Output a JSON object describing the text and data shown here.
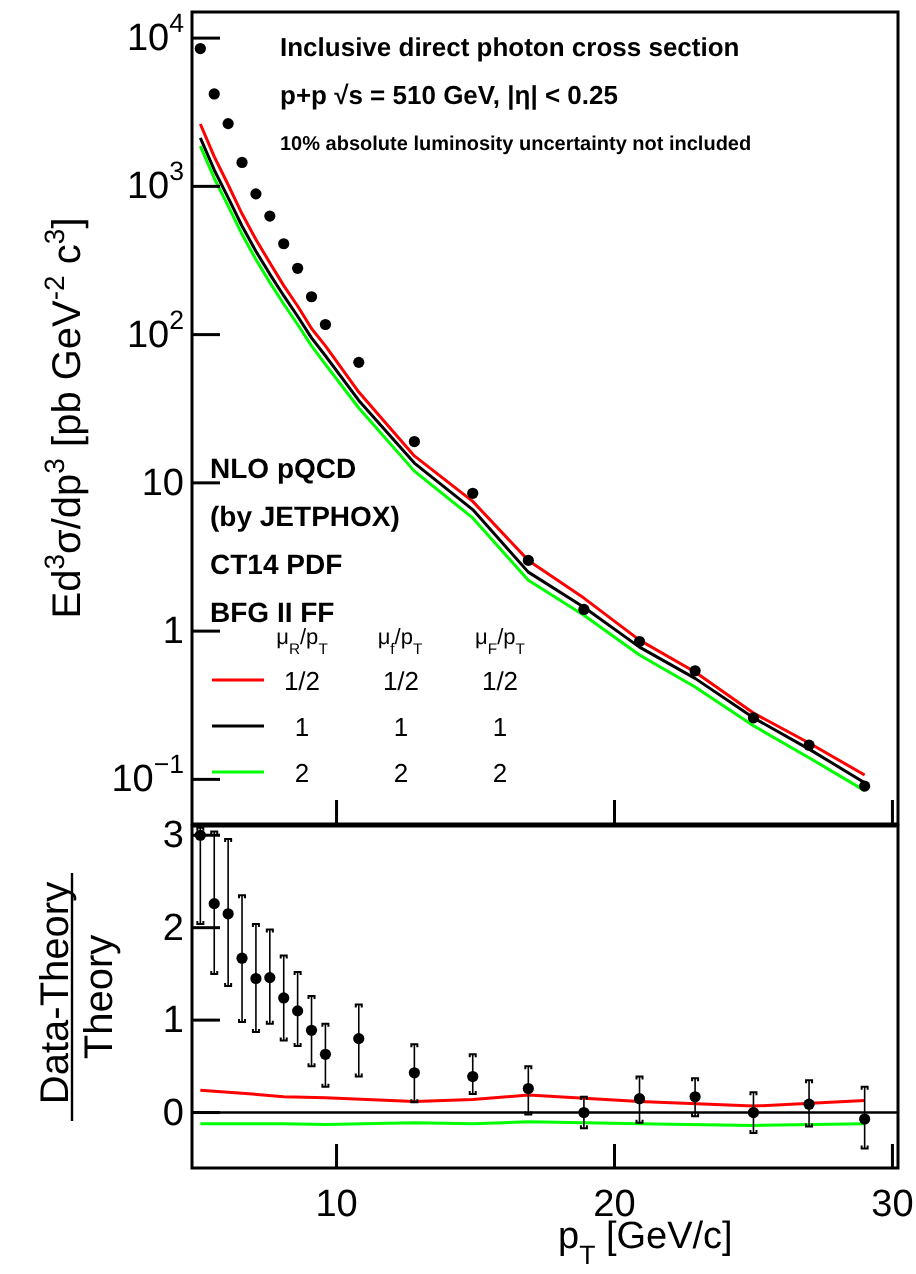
{
  "chart_data": [
    {
      "type": "scatter",
      "title": "Inclusive direct photon cross section",
      "subtitle": "p+p  √s = 510 GeV, |η| < 0.25",
      "annotations": [
        "10% absolute luminosity uncertainty not included",
        "NLO pQCD",
        "(by JETPHOX)",
        "CT14 PDF",
        "BFG II FF"
      ],
      "ylabel": "Ed$^{3}$σ/dp$^{3}$ [pb GeV$^{-2}$ c$^{3}$]",
      "log": "y",
      "tick_labels": "y",
      "legend": "bottom left",
      "legend_title": "μ$_{R}$/p$_{T}$ μ$_{f}$/p$_{T}$ μ$_{F}$/p$_{T}$",
      "xlim": [
        4.8,
        30.2
      ],
      "xticks": [
        {
          "value": 10,
          "label": null
        },
        {
          "value": 20,
          "label": null
        },
        {
          "value": 30,
          "label": null
        }
      ],
      "ylim": [
        0.05,
        15000
      ],
      "yticks": [
        {
          "value": 10000,
          "label": "10$^{4}$"
        },
        {
          "value": 1000,
          "label": "10$^{3}$"
        },
        {
          "value": 100,
          "label": "10$^{2}$"
        },
        10,
        1,
        {
          "value": 0.1,
          "label": "10$^{−1}$"
        }
      ],
      "series": [
        {
          "type": "line",
          "name": "1/2 1/2 1/2",
          "color": "#ff0000",
          "x": [
            5.1,
            5.6,
            6.1,
            6.6,
            7.1,
            7.6,
            8.1,
            8.6,
            9.1,
            9.6,
            10.8,
            12.8,
            14.9,
            16.9,
            18.9,
            20.9,
            22.9,
            25.0,
            27.0,
            29.0
          ],
          "values": [
            2635,
            1587,
            1025,
            653,
            438,
            305,
            214,
            156,
            110,
            84,
            41,
            15.2,
            7.5,
            3.0,
            1.67,
            0.87,
            0.53,
            0.28,
            0.176,
            0.107
          ]
        },
        {
          "type": "line",
          "name": "1 1 1",
          "color": "#000000",
          "x": [
            5.1,
            5.6,
            6.1,
            6.6,
            7.1,
            7.6,
            8.1,
            8.6,
            9.1,
            9.6,
            10.8,
            12.8,
            14.9,
            16.9,
            18.9,
            20.9,
            22.9,
            25.0,
            27.0,
            29.0
          ],
          "values": [
            2125,
            1290,
            840,
            540,
            365,
            256,
            183,
            133,
            95,
            72,
            36,
            13.6,
            6.6,
            2.5,
            1.45,
            0.78,
            0.48,
            0.26,
            0.16,
            0.095
          ]
        },
        {
          "type": "line",
          "name": "2 2 2",
          "color": "#00ff00",
          "x": [
            5.1,
            5.6,
            6.1,
            6.6,
            7.1,
            7.6,
            8.1,
            8.6,
            9.1,
            9.6,
            10.8,
            12.8,
            14.9,
            16.9,
            18.9,
            20.9,
            22.9,
            25.0,
            27.0,
            29.0
          ],
          "values": [
            1870,
            1135,
            739,
            475,
            321,
            225,
            161,
            117,
            84,
            63,
            32,
            12.0,
            5.8,
            2.2,
            1.28,
            0.69,
            0.42,
            0.23,
            0.14,
            0.084
          ]
        },
        {
          "type": "scatter",
          "marker": "circle",
          "color": "#000000",
          "x": [
            5.1,
            5.6,
            6.1,
            6.6,
            7.1,
            7.6,
            8.1,
            8.6,
            9.1,
            9.6,
            10.8,
            12.8,
            14.9,
            16.9,
            18.9,
            20.9,
            22.9,
            25.0,
            27.0,
            29.0
          ],
          "values": [
            8500,
            4200,
            2650,
            1450,
            890,
            630,
            410,
            280,
            180,
            117,
            65,
            19,
            8.5,
            3.0,
            1.4,
            0.85,
            0.54,
            0.26,
            0.17,
            0.09
          ]
        }
      ]
    },
    {
      "type": "scatter",
      "xlabel": "p$_{T}$ [GeV/c]",
      "ylabel": "Data-Theory\nTheory",
      "xlim": [
        4.8,
        30.2
      ],
      "xticks": [
        10,
        20,
        30
      ],
      "ylim": [
        -0.6,
        3.1
      ],
      "yticks": [
        0,
        1,
        2,
        3
      ],
      "ref_lines": [
        {
          "axis": "y",
          "value": 0,
          "color": "#000000"
        }
      ],
      "series": [
        {
          "type": "line",
          "color": "#ff0000",
          "x": [
            5.1,
            6.6,
            8.1,
            9.6,
            12.8,
            14.9,
            16.9,
            20.9,
            25.0,
            29.0
          ],
          "values": [
            0.24,
            0.21,
            0.17,
            0.16,
            0.12,
            0.14,
            0.19,
            0.12,
            0.07,
            0.13
          ]
        },
        {
          "type": "line",
          "color": "#00ff00",
          "x": [
            5.1,
            6.6,
            8.1,
            9.6,
            12.8,
            14.9,
            16.9,
            20.9,
            25.0,
            29.0
          ],
          "values": [
            -0.12,
            -0.12,
            -0.12,
            -0.13,
            -0.11,
            -0.12,
            -0.1,
            -0.12,
            -0.14,
            -0.12
          ]
        },
        {
          "type": "scatter",
          "marker": "circle",
          "color": "#000000",
          "x": [
            5.1,
            5.6,
            6.1,
            6.6,
            7.1,
            7.6,
            8.1,
            8.6,
            9.1,
            9.6,
            10.8,
            12.8,
            14.9,
            16.9,
            18.9,
            20.9,
            22.9,
            25.0,
            27.0,
            29.0
          ],
          "values": [
            3.0,
            2.26,
            2.15,
            1.67,
            1.45,
            1.46,
            1.24,
            1.1,
            0.89,
            0.63,
            0.8,
            0.43,
            0.39,
            0.26,
            0.0,
            0.15,
            0.17,
            0.0,
            0.09,
            -0.07
          ],
          "errors": [
            [
              2.04,
              3.08
            ],
            [
              1.5,
              3.04
            ],
            [
              1.37,
              2.96
            ],
            [
              0.98,
              2.35
            ],
            [
              0.87,
              2.04
            ],
            [
              0.96,
              1.98
            ],
            [
              0.78,
              1.7
            ],
            [
              0.72,
              1.52
            ],
            [
              0.5,
              1.26
            ],
            [
              0.28,
              0.96
            ],
            [
              0.39,
              1.17
            ],
            [
              0.11,
              0.74
            ],
            [
              0.2,
              0.63
            ],
            [
              -0.02,
              0.5
            ],
            [
              -0.17,
              0.17
            ],
            [
              -0.11,
              0.39
            ],
            [
              -0.04,
              0.37
            ],
            [
              -0.22,
              0.22
            ],
            [
              -0.15,
              0.35
            ],
            [
              -0.39,
              0.28
            ]
          ]
        }
      ]
    }
  ]
}
